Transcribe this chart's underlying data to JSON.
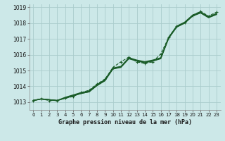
{
  "title": "Graphe pression niveau de la mer (hPa)",
  "background_color": "#cce8e8",
  "grid_color": "#aacccc",
  "line_color": "#1a5c28",
  "xlim": [
    -0.5,
    23.5
  ],
  "ylim": [
    1012.5,
    1019.2
  ],
  "yticks": [
    1013,
    1014,
    1015,
    1016,
    1017,
    1018,
    1019
  ],
  "xticks": [
    0,
    1,
    2,
    3,
    4,
    5,
    6,
    7,
    8,
    9,
    10,
    11,
    12,
    13,
    14,
    15,
    16,
    17,
    18,
    19,
    20,
    21,
    22,
    23
  ],
  "series_smooth": [
    {
      "x": [
        0,
        1,
        2,
        3,
        4,
        5,
        6,
        7,
        8,
        9,
        10,
        11,
        12,
        13,
        14,
        15,
        16,
        17,
        18,
        19,
        20,
        21,
        22,
        23
      ],
      "y": [
        1013.1,
        1013.2,
        1013.15,
        1013.1,
        1013.25,
        1013.4,
        1013.55,
        1013.65,
        1014.05,
        1014.35,
        1015.1,
        1015.2,
        1015.75,
        1015.6,
        1015.5,
        1015.6,
        1015.75,
        1017.05,
        1017.75,
        1018.0,
        1018.45,
        1018.65,
        1018.35,
        1018.55
      ],
      "linewidth": 1.0
    },
    {
      "x": [
        0,
        1,
        2,
        3,
        4,
        5,
        6,
        7,
        8,
        9,
        10,
        11,
        12,
        13,
        14,
        15,
        16,
        17,
        18,
        19,
        20,
        21,
        22,
        23
      ],
      "y": [
        1013.1,
        1013.2,
        1013.15,
        1013.1,
        1013.25,
        1013.4,
        1013.55,
        1013.65,
        1014.05,
        1014.38,
        1015.12,
        1015.22,
        1015.77,
        1015.62,
        1015.52,
        1015.62,
        1015.77,
        1017.07,
        1017.77,
        1018.02,
        1018.47,
        1018.67,
        1018.37,
        1018.57
      ],
      "linewidth": 1.0
    },
    {
      "x": [
        0,
        1,
        2,
        3,
        4,
        5,
        6,
        7,
        8,
        9,
        10,
        11,
        12,
        13,
        14,
        15,
        16,
        17,
        18,
        19,
        20,
        21,
        22,
        23
      ],
      "y": [
        1013.1,
        1013.2,
        1013.15,
        1013.1,
        1013.3,
        1013.45,
        1013.6,
        1013.7,
        1014.1,
        1014.42,
        1015.16,
        1015.26,
        1015.81,
        1015.66,
        1015.56,
        1015.66,
        1015.81,
        1017.11,
        1017.81,
        1018.06,
        1018.51,
        1018.71,
        1018.41,
        1018.61
      ],
      "linewidth": 1.0
    }
  ],
  "series_marker": {
    "x": [
      0,
      1,
      2,
      3,
      4,
      5,
      6,
      7,
      8,
      9,
      10,
      11,
      12,
      13,
      14,
      15,
      16,
      17,
      18,
      19,
      20,
      21,
      22,
      23
    ],
    "y": [
      1013.1,
      1013.2,
      1013.1,
      1013.1,
      1013.25,
      1013.35,
      1013.6,
      1013.75,
      1014.15,
      1014.45,
      1015.2,
      1015.55,
      1015.85,
      1015.55,
      1015.45,
      1015.55,
      1016.05,
      1017.1,
      1017.8,
      1018.05,
      1018.5,
      1018.75,
      1018.45,
      1018.7
    ],
    "linewidth": 0.8,
    "marker_size": 3.5
  }
}
